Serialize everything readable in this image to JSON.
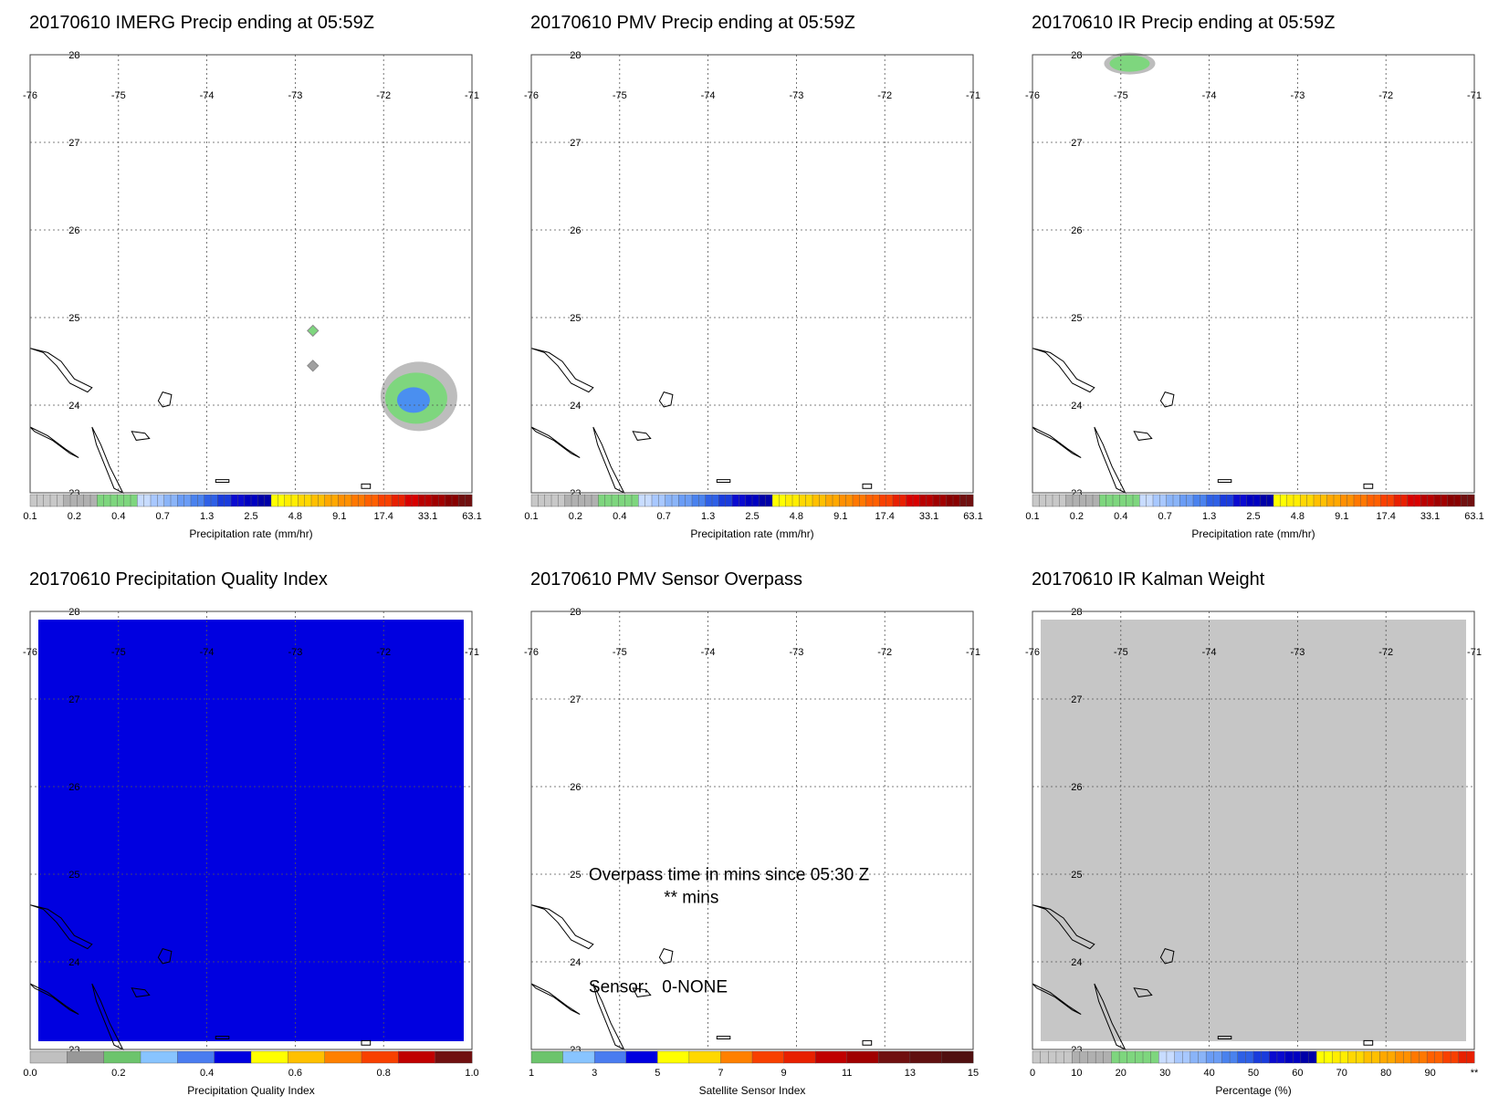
{
  "map_extent": {
    "lon_min": -76,
    "lon_max": -71,
    "lat_min": 23,
    "lat_max": 28
  },
  "lon_ticks": [
    "-76",
    "-75",
    "-74",
    "-73",
    "-72",
    "-71"
  ],
  "lat_ticks": [
    "28",
    "27",
    "26",
    "25",
    "24",
    "23"
  ],
  "colors": {
    "background": "#ffffff",
    "grid": "#555555",
    "coast": "#000000"
  },
  "panels": [
    {
      "id": "imerg",
      "title": "20170610 IMERG Precip ending at 05:59Z",
      "fill": null,
      "features": [
        {
          "type": "rain_cell",
          "lon": -71.6,
          "lat": 24.1,
          "colors": [
            "#bdbdbd",
            "#7ed67e",
            "#4a8ff0"
          ]
        },
        {
          "type": "diamond",
          "lon": -72.8,
          "lat": 24.85,
          "color": "#7ed67e"
        },
        {
          "type": "diamond",
          "lon": -72.8,
          "lat": 24.45,
          "color": "#a0a0a0"
        }
      ],
      "colorbar": {
        "label": "Precipitation rate (mm/hr)",
        "ticks": [
          "0.1",
          "0.2",
          "0.4",
          "0.7",
          "1.3",
          "2.5",
          "4.8",
          "9.1",
          "17.4",
          "33.1",
          "63.1"
        ],
        "colors": [
          "#c8c8c8",
          "#c8c8c8",
          "#c8c8c8",
          "#c8c8c8",
          "#c8c8c8",
          "#b0b0b0",
          "#b0b0b0",
          "#b0b0b0",
          "#b0b0b0",
          "#b0b0b0",
          "#7ed67e",
          "#7ed67e",
          "#7ed67e",
          "#7ed67e",
          "#7ed67e",
          "#7ed67e",
          "#c8dcff",
          "#c8dcff",
          "#a8c8ff",
          "#a8c8ff",
          "#8ab4f8",
          "#8ab4f8",
          "#6a9cf5",
          "#6a9cf5",
          "#4a82ee",
          "#4a82ee",
          "#2e60e6",
          "#2e60e6",
          "#1a3cdc",
          "#1a3cdc",
          "#0a0ad0",
          "#0a0ad0",
          "#0000c0",
          "#0000c0",
          "#0000a8",
          "#0000a8",
          "#ffff00",
          "#ffff00",
          "#ffee00",
          "#ffee00",
          "#ffd800",
          "#ffd800",
          "#ffc000",
          "#ffc000",
          "#ffa800",
          "#ffa800",
          "#ff9000",
          "#ff9000",
          "#ff7800",
          "#ff7800",
          "#ff6000",
          "#ff6000",
          "#f84000",
          "#f84000",
          "#e82000",
          "#e82000",
          "#d80000",
          "#d80000",
          "#b80000",
          "#b80000",
          "#a00000",
          "#a00000",
          "#880000",
          "#880000",
          "#701010",
          "#701010"
        ]
      }
    },
    {
      "id": "pmv",
      "title": "20170610 PMV Precip ending at 05:59Z",
      "fill": null,
      "features": [],
      "colorbar": {
        "label": "Precipitation rate (mm/hr)",
        "ticks": [
          "0.1",
          "0.2",
          "0.4",
          "0.7",
          "1.3",
          "2.5",
          "4.8",
          "9.1",
          "17.4",
          "33.1",
          "63.1"
        ],
        "colors": "same_as_imerg"
      }
    },
    {
      "id": "ir",
      "title": "20170610 IR Precip ending at 05:59Z",
      "fill": null,
      "features": [
        {
          "type": "rain_blob",
          "lon": -74.9,
          "lat": 27.9,
          "colors": [
            "#bdbdbd",
            "#7ed67e"
          ]
        }
      ],
      "colorbar": {
        "label": "Precipitation rate (mm/hr)",
        "ticks": [
          "0.1",
          "0.2",
          "0.4",
          "0.7",
          "1.3",
          "2.5",
          "4.8",
          "9.1",
          "17.4",
          "33.1",
          "63.1"
        ],
        "colors": "same_as_imerg"
      }
    },
    {
      "id": "pqi",
      "title": "20170610 Precipitation Quality Index",
      "fill": "#0000e0",
      "features": [],
      "colorbar": {
        "label": "Precipitation Quality Index",
        "ticks": [
          "0.0",
          "0.2",
          "0.4",
          "0.6",
          "0.8",
          "1.0"
        ],
        "colors": [
          "#c0c0c0",
          "#989898",
          "#6cc46c",
          "#88c4ff",
          "#4a7cf0",
          "#0000e0",
          "#ffff00",
          "#ffc000",
          "#ff8000",
          "#f84000",
          "#c00000",
          "#701010"
        ]
      }
    },
    {
      "id": "overpass",
      "title": "20170610 PMV Sensor Overpass",
      "fill": null,
      "features": [],
      "annotations": {
        "line1": "Overpass time in mins since 05:30 Z",
        "line2": "** mins",
        "sensor_label": "Sensor:",
        "sensor_value": "0-NONE"
      },
      "colorbar": {
        "label": "Satellite Sensor Index",
        "ticks": [
          "1",
          "3",
          "5",
          "7",
          "9",
          "11",
          "13",
          "15"
        ],
        "colors": [
          "#6cc46c",
          "#88c4ff",
          "#4a7cf0",
          "#0000e0",
          "#ffff00",
          "#ffd800",
          "#ff8000",
          "#f84000",
          "#e82000",
          "#c00000",
          "#a00000",
          "#701010",
          "#601010",
          "#501010"
        ]
      }
    },
    {
      "id": "kalman",
      "title": "20170610 IR Kalman Weight",
      "fill": "#c6c6c6",
      "features": [],
      "colorbar": {
        "label": "Percentage (%)",
        "ticks": [
          "0",
          "10",
          "20",
          "30",
          "40",
          "50",
          "60",
          "70",
          "80",
          "90",
          "**"
        ],
        "colors": [
          "#c8c8c8",
          "#c8c8c8",
          "#c8c8c8",
          "#c8c8c8",
          "#c8c8c8",
          "#b0b0b0",
          "#b0b0b0",
          "#b0b0b0",
          "#b0b0b0",
          "#b0b0b0",
          "#7ed67e",
          "#7ed67e",
          "#7ed67e",
          "#7ed67e",
          "#7ed67e",
          "#7ed67e",
          "#c8dcff",
          "#c8dcff",
          "#a8c8ff",
          "#a8c8ff",
          "#8ab4f8",
          "#8ab4f8",
          "#6a9cf5",
          "#6a9cf5",
          "#4a82ee",
          "#4a82ee",
          "#2e60e6",
          "#2e60e6",
          "#1a3cdc",
          "#1a3cdc",
          "#0a0ad0",
          "#0a0ad0",
          "#0000c0",
          "#0000c0",
          "#0000a8",
          "#0000a8",
          "#ffff00",
          "#ffff00",
          "#ffee00",
          "#ffee00",
          "#ffd800",
          "#ffd800",
          "#ffc000",
          "#ffc000",
          "#ffa800",
          "#ffa800",
          "#ff9000",
          "#ff9000",
          "#ff7800",
          "#ff7800",
          "#ff6000",
          "#ff6000",
          "#f84000",
          "#f84000",
          "#e82000",
          "#e82000"
        ]
      }
    }
  ]
}
